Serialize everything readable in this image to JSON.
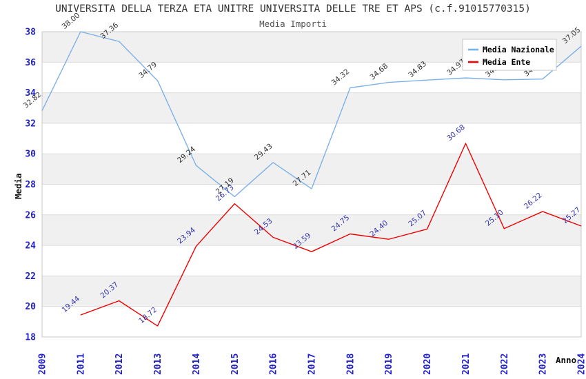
{
  "header": {
    "title": "UNIVERSITA DELLA TERZA ETA UNITRE UNIVERSITA DELLE TRE ET APS (c.f.91015770315)",
    "subtitle": "Media Importi"
  },
  "chart_data": {
    "type": "line",
    "title": "UNIVERSITA DELLA TERZA ETA UNITRE UNIVERSITA DELLE TRE ET APS (c.f.91015770315)",
    "subtitle": "Media Importi",
    "xlabel": "Anno",
    "ylabel": "Media",
    "categories": [
      "2009",
      "2011",
      "2012",
      "2013",
      "2014",
      "2015",
      "2016",
      "2017",
      "2018",
      "2019",
      "2020",
      "2021",
      "2022",
      "2023",
      "2024"
    ],
    "ylim": [
      18,
      38
    ],
    "ytick_step": 2,
    "grid": true,
    "band_ranges_gray": [
      [
        36,
        38
      ],
      [
        32,
        34
      ],
      [
        28,
        30
      ],
      [
        24,
        26
      ],
      [
        20,
        22
      ]
    ],
    "legend_position": "top-right",
    "series": [
      {
        "name": "Media Nazionale",
        "color": "#7CB1E8",
        "label_color": "#333333",
        "start_index": 0,
        "values": [
          32.82,
          38.0,
          37.36,
          34.79,
          29.24,
          27.19,
          29.43,
          27.71,
          34.32,
          34.68,
          34.83,
          34.97,
          34.85,
          34.9,
          37.05
        ]
      },
      {
        "name": "Media Ente",
        "color": "#EE0000",
        "label_color": "#3434AE",
        "start_index": 1,
        "values": [
          19.44,
          20.37,
          18.72,
          23.94,
          26.73,
          24.53,
          23.59,
          24.75,
          24.4,
          25.07,
          30.68,
          25.1,
          26.22,
          25.27
        ]
      }
    ]
  },
  "style_colors": {
    "tick_label": "#2222CC",
    "axis_title": "#111111",
    "band_gray": "#F0F0F0",
    "grid_line": "#DCDCDC",
    "plot_border": "#C8C8C8",
    "legend_border": "#C8C8C8",
    "legend_bg": "#FFFFFF",
    "legend_text": "#000000"
  }
}
